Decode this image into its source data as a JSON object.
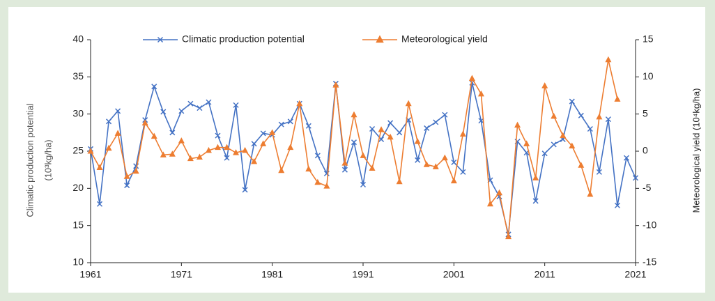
{
  "chart_data": {
    "type": "line",
    "ylabel": [
      "Climatic production potential",
      "(10³kg/ha)"
    ],
    "y2label": "Meteorological yield  (10⁴kg/ha)",
    "x": [
      1961,
      1962,
      1963,
      1964,
      1965,
      1966,
      1967,
      1968,
      1969,
      1970,
      1971,
      1972,
      1973,
      1974,
      1975,
      1976,
      1977,
      1978,
      1979,
      1980,
      1981,
      1982,
      1983,
      1984,
      1985,
      1986,
      1987,
      1988,
      1989,
      1990,
      1991,
      1992,
      1993,
      1994,
      1995,
      1996,
      1997,
      1998,
      1999,
      2000,
      2001,
      2002,
      2003,
      2004,
      2005,
      2006,
      2007,
      2008,
      2009,
      2010,
      2011,
      2012,
      2013,
      2014,
      2015,
      2016,
      2017,
      2018,
      2019,
      2020,
      2021
    ],
    "series": [
      {
        "name": "Climatic production potential",
        "color": "#4472c4",
        "marker": "x",
        "axis": "y",
        "values": [
          25.3,
          17.9,
          29.0,
          30.4,
          20.4,
          23.0,
          29.2,
          33.7,
          30.3,
          27.5,
          30.4,
          31.4,
          30.8,
          31.6,
          27.1,
          24.1,
          31.2,
          19.8,
          26.0,
          27.4,
          27.2,
          28.6,
          29.0,
          31.4,
          28.4,
          24.4,
          22.0,
          34.1,
          22.5,
          26.2,
          20.5,
          28.0,
          26.6,
          28.8,
          27.5,
          29.2,
          23.8,
          28.1,
          28.9,
          29.9,
          23.5,
          22.2,
          34.2,
          29.1,
          21.1,
          18.9,
          13.8,
          26.3,
          24.8,
          18.3,
          24.7,
          25.9,
          26.6,
          31.7,
          29.8,
          28.0,
          22.2,
          29.3,
          17.7,
          24.1,
          21.4
        ]
      },
      {
        "name": "Meteorological yield",
        "color": "#ed7d31",
        "marker": "triangle",
        "axis": "y2",
        "values": [
          0,
          -2.2,
          0.4,
          2.4,
          -3.4,
          -2.7,
          3.8,
          2.0,
          -0.5,
          -0.4,
          1.4,
          -1.0,
          -0.8,
          0.1,
          0.5,
          0.5,
          -0.2,
          0.1,
          -1.4,
          1.0,
          2.5,
          -2.6,
          0.5,
          6.4,
          -2.4,
          -4.2,
          -4.7,
          8.9,
          -1.6,
          4.9,
          -0.6,
          -2.3,
          2.9,
          1.9,
          -4.1,
          6.4,
          1.3,
          -1.8,
          -2.1,
          -0.9,
          -4.0,
          2.3,
          9.8,
          7.7,
          -7.1,
          -5.6,
          -11.5,
          3.5,
          1.0,
          -3.6,
          8.8,
          4.7,
          2.1,
          0.7,
          -1.9,
          -5.8,
          4.6,
          12.3,
          7.0,
          null,
          null
        ]
      }
    ],
    "xlim": [
      1961,
      2021
    ],
    "xticks": [
      1961,
      1971,
      1981,
      1991,
      2001,
      2011,
      2021
    ],
    "ylim": [
      10,
      40
    ],
    "yticks": [
      10,
      15,
      20,
      25,
      30,
      35,
      40
    ],
    "y2lim": [
      -15,
      15
    ],
    "y2ticks": [
      -15,
      -10,
      -5,
      0,
      5,
      10,
      15
    ],
    "legend": "top",
    "grid": false
  }
}
